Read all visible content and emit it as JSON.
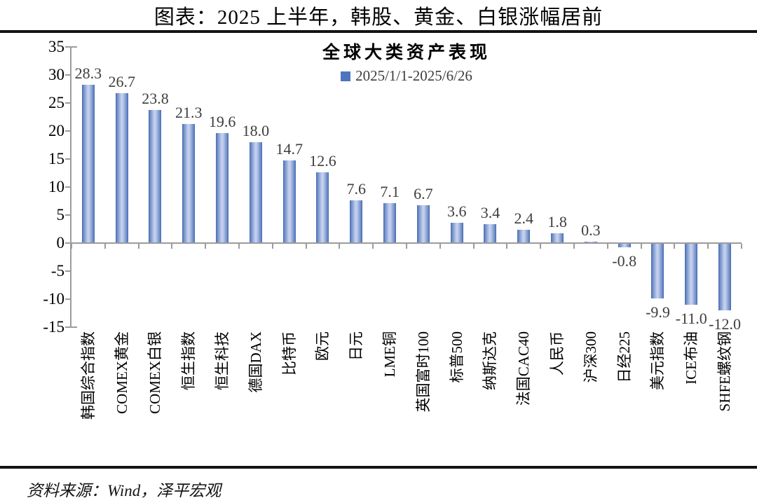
{
  "page": {
    "title": "图表：2025 上半年，韩股、黄金、白银涨幅居前",
    "source_note": "资料来源：Wind，泽平宏观"
  },
  "chart_data": {
    "type": "bar",
    "title": "全球大类资产表现",
    "legend": "2025/1/1-2025/6/26",
    "legend_position": "top-center",
    "grid": false,
    "categories": [
      "韩国综合指数",
      "COMEX黄金",
      "COMEX白银",
      "恒生指数",
      "恒生科技",
      "德国DAX",
      "比特币",
      "欧元",
      "日元",
      "LME铜",
      "英国富时100",
      "标普500",
      "纳斯达克",
      "法国CAC40",
      "人民币",
      "沪深300",
      "日经225",
      "美元指数",
      "ICE布油",
      "SHFE螺纹钢"
    ],
    "values": [
      28.3,
      26.7,
      23.8,
      21.3,
      19.6,
      18.0,
      14.7,
      12.6,
      7.6,
      7.1,
      6.7,
      3.6,
      3.4,
      2.4,
      1.8,
      0.3,
      -0.8,
      -9.9,
      -11.0,
      -12.0
    ],
    "ylabel": "",
    "xlabel": "",
    "ylim": [
      -15,
      35
    ],
    "ytick_step": 5,
    "colors": {
      "bar_edge": "#4569ae",
      "bar_mid": "#c3cfee",
      "legend_marker": "#4d74be",
      "axis": "#9c9c9c",
      "value_label": "#3d3d3d",
      "rule": "#141414"
    }
  }
}
